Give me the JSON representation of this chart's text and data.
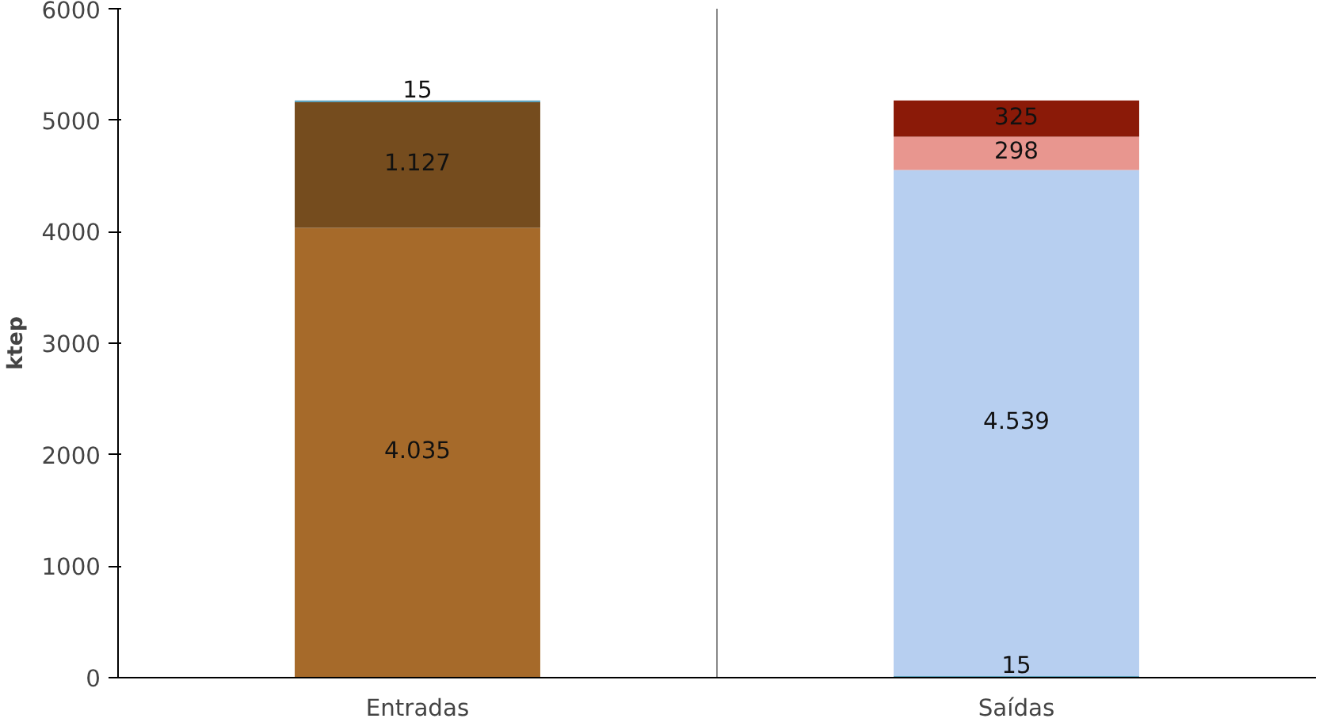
{
  "chart_data": {
    "type": "bar",
    "stacked": true,
    "ylabel": "ktep",
    "categories": [
      "Entradas",
      "Saídas"
    ],
    "ylim": [
      0,
      6000
    ],
    "yticks": [
      0,
      1000,
      2000,
      3000,
      4000,
      5000,
      6000
    ],
    "grid": "x",
    "series": [
      {
        "color": "#a66a2a",
        "values": [
          4035,
          null
        ],
        "value_labels": [
          "4.035",
          null
        ]
      },
      {
        "color": "#5fa3bd",
        "values": [
          null,
          15
        ],
        "value_labels": [
          null,
          "15"
        ]
      },
      {
        "color": "#754c1e",
        "values": [
          1127,
          null
        ],
        "value_labels": [
          "1.127",
          null
        ]
      },
      {
        "color": "#b7cff0",
        "values": [
          null,
          4539
        ],
        "value_labels": [
          null,
          "4.539"
        ]
      },
      {
        "color": "#5fa3bd",
        "values": [
          15,
          null
        ],
        "value_labels": [
          "15",
          null
        ]
      },
      {
        "color": "#e8968f",
        "values": [
          null,
          298
        ],
        "value_labels": [
          null,
          "298"
        ]
      },
      {
        "color": "#8b1a08",
        "values": [
          null,
          325
        ],
        "value_labels": [
          null,
          "325"
        ]
      }
    ]
  }
}
